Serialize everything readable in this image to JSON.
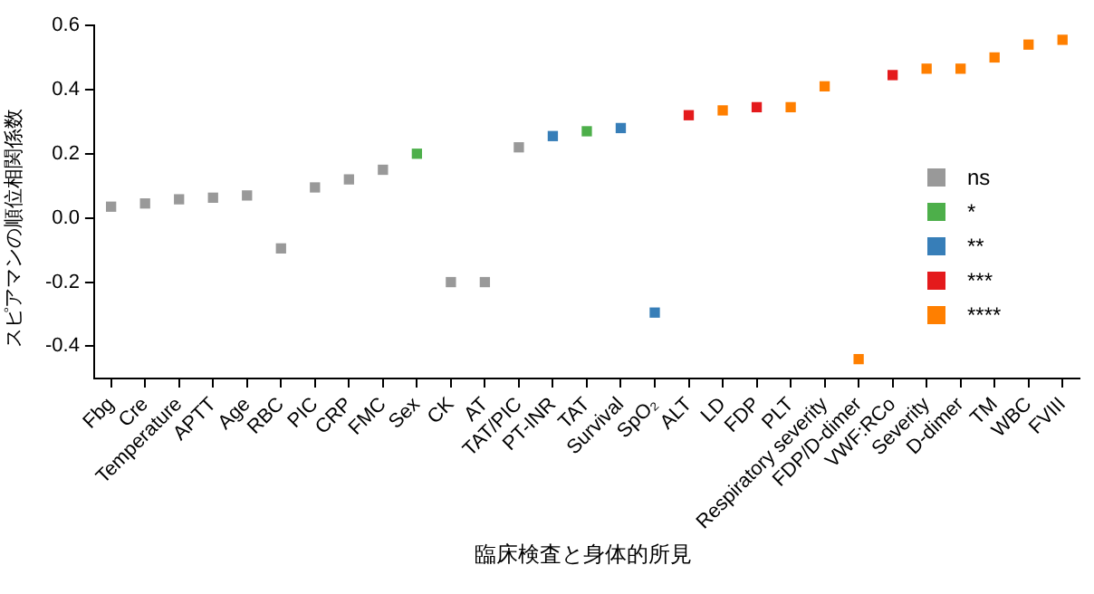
{
  "chart_data": {
    "type": "scatter",
    "xlabel": "臨床検査と身体的所見",
    "ylabel": "スピアマンの順位相関係数",
    "categories": [
      "Fbg",
      "Cre",
      "Temperature",
      "APTT",
      "Age",
      "RBC",
      "PIC",
      "CRP",
      "FMC",
      "Sex",
      "CK",
      "AT",
      "TAT/PIC",
      "PT-INR",
      "TAT",
      "Survival",
      "SpO₂",
      "ALT",
      "LD",
      "FDP",
      "PLT",
      "Respiratory severity",
      "FDP/D-dimer",
      "VWF:RCo",
      "Severity",
      "D-dimer",
      "TM",
      "WBC",
      "FVIII"
    ],
    "series": [
      {
        "name": "ns",
        "color": "#999999",
        "values": [
          0.035,
          0.045,
          0.058,
          0.063,
          0.07,
          -0.095,
          0.095,
          0.12,
          0.15,
          null,
          -0.2,
          -0.2,
          0.22,
          null,
          null,
          null,
          null,
          null,
          null,
          null,
          null,
          null,
          null,
          null,
          null,
          null,
          null,
          null,
          null
        ]
      },
      {
        "name": "*",
        "color": "#4daf4a",
        "values": [
          null,
          null,
          null,
          null,
          null,
          null,
          null,
          null,
          null,
          0.2,
          null,
          null,
          null,
          null,
          0.27,
          null,
          null,
          null,
          null,
          null,
          null,
          null,
          null,
          null,
          null,
          null,
          null,
          null,
          null
        ]
      },
      {
        "name": "**",
        "color": "#377eb8",
        "values": [
          null,
          null,
          null,
          null,
          null,
          null,
          null,
          null,
          null,
          null,
          null,
          null,
          null,
          0.255,
          null,
          0.28,
          -0.295,
          null,
          null,
          null,
          null,
          null,
          null,
          null,
          null,
          null,
          null,
          null,
          null
        ]
      },
      {
        "name": "***",
        "color": "#e41a1c",
        "values": [
          null,
          null,
          null,
          null,
          null,
          null,
          null,
          null,
          null,
          null,
          null,
          null,
          null,
          null,
          null,
          null,
          null,
          0.32,
          null,
          0.345,
          null,
          null,
          null,
          0.445,
          null,
          null,
          null,
          null,
          null
        ]
      },
      {
        "name": "****",
        "color": "#ff7f00",
        "values": [
          null,
          null,
          null,
          null,
          null,
          null,
          null,
          null,
          null,
          null,
          null,
          null,
          null,
          null,
          null,
          null,
          null,
          null,
          0.335,
          null,
          0.345,
          0.41,
          -0.44,
          null,
          0.465,
          0.465,
          0.5,
          0.54,
          0.555
        ]
      }
    ],
    "ylim": [
      -0.5,
      0.6
    ],
    "yticks": [
      -0.4,
      -0.2,
      {
        "value": 0,
        "label": "0.0"
      },
      0.2,
      0.4,
      0.6
    ],
    "grid": false,
    "legend": "right",
    "marker": "square"
  }
}
